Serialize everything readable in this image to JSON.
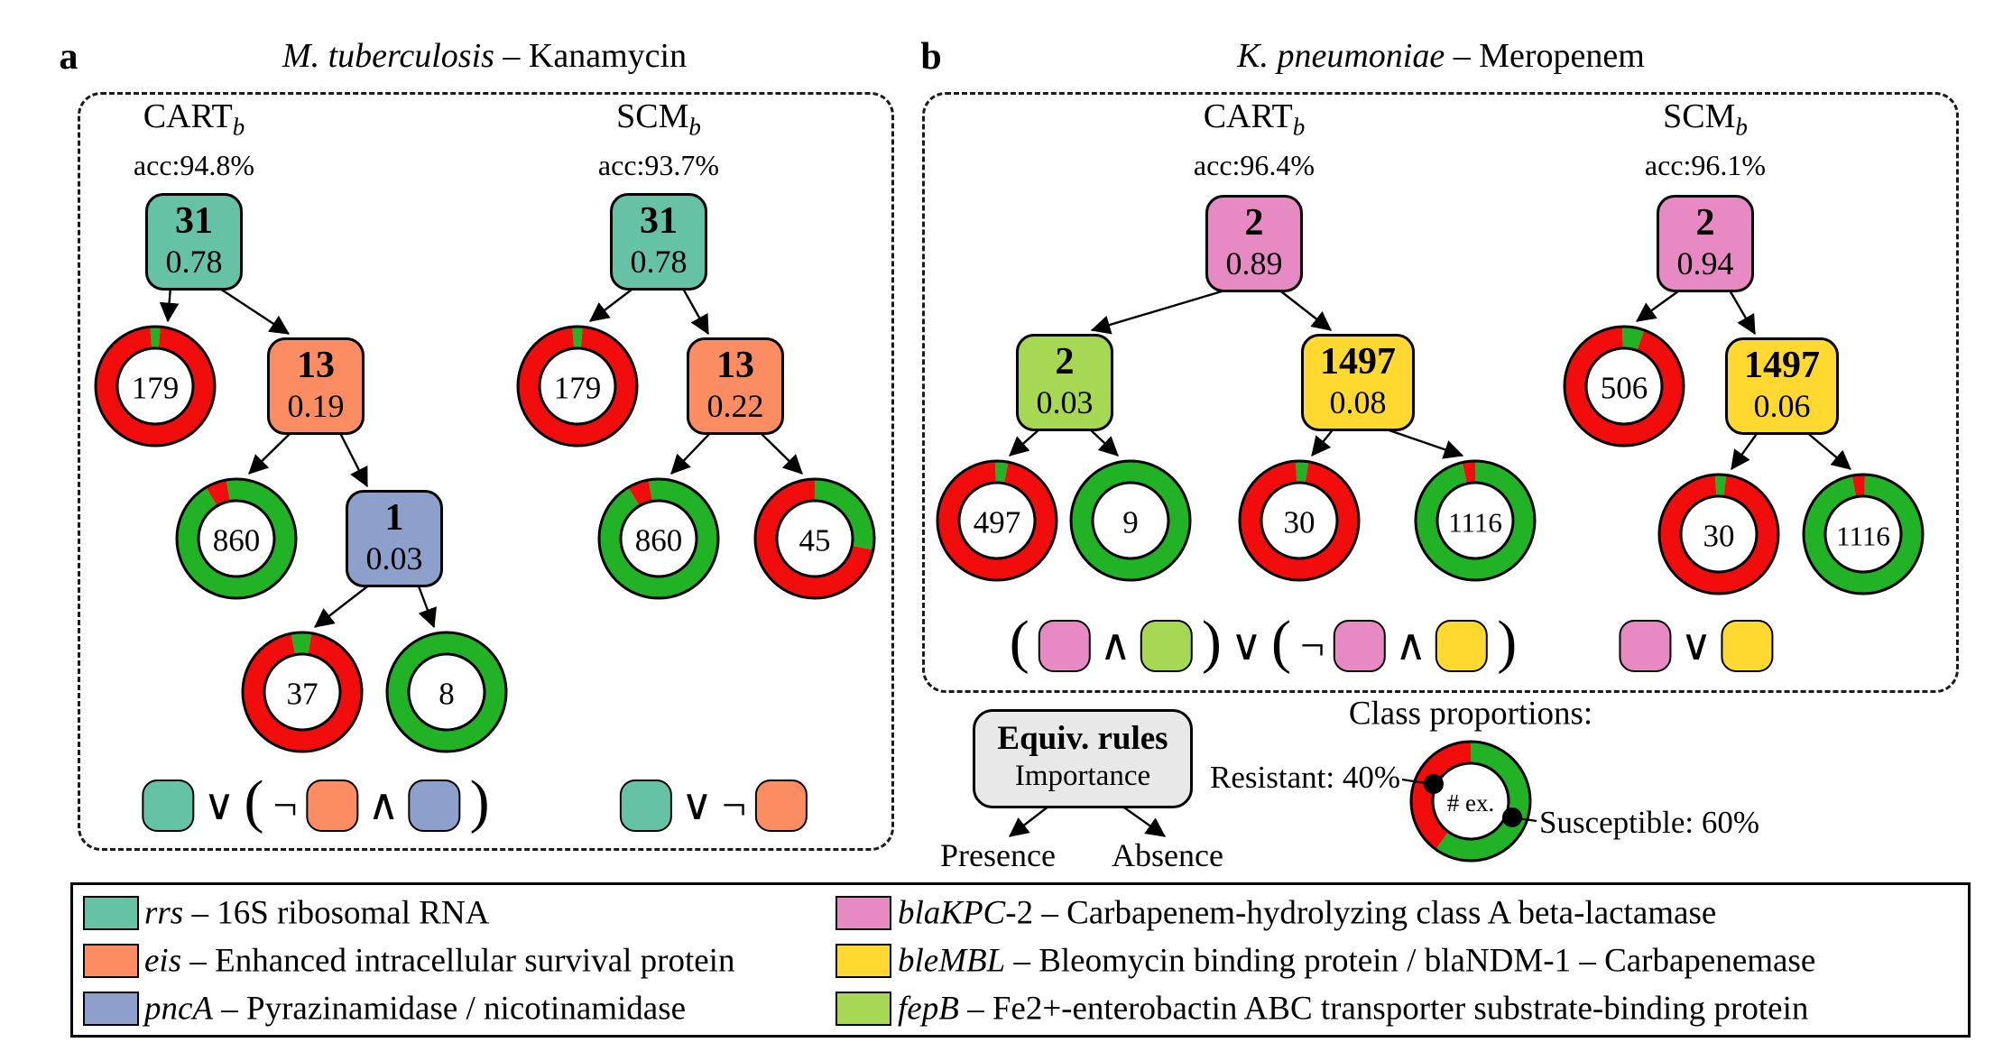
{
  "colors": {
    "teal": "#66C2A5",
    "orange": "#FC8D62",
    "blue": "#8DA0CB",
    "pink": "#E78AC3",
    "yellow": "#FFD92F",
    "green": "#A6D854",
    "resistant_red": "#F20D0D",
    "susceptible_green": "#21B226",
    "equiv_box_fill": "#E8E8E8"
  },
  "panels": {
    "a": {
      "label": "a",
      "title_italic": "M. tuberculosis",
      "title_rest": " – Kanamycin",
      "trees": [
        {
          "name": "CART",
          "sub": "b",
          "acc": "acc:94.8%",
          "nodes": [
            {
              "kind": "box",
              "color": "teal",
              "value": "31",
              "imp": "0.78"
            },
            {
              "kind": "donut",
              "value": "179",
              "rot": -0.014,
              "segs": [
                [
                  "G",
                  0.028
                ],
                [
                  "R",
                  0.972
                ]
              ]
            },
            {
              "kind": "box",
              "color": "orange",
              "value": "13",
              "imp": "0.19"
            },
            {
              "kind": "donut",
              "value": "860",
              "rot": -0.085,
              "segs": [
                [
                  "R",
                  0.058
                ],
                [
                  "G",
                  0.942
                ]
              ]
            },
            {
              "kind": "box",
              "color": "blue",
              "value": "1",
              "imp": "0.03"
            },
            {
              "kind": "donut",
              "value": "37",
              "rot": -0.03,
              "segs": [
                [
                  "G",
                  0.055
                ],
                [
                  "R",
                  0.945
                ]
              ]
            },
            {
              "kind": "donut",
              "value": "8",
              "rot": 0,
              "segs": [
                [
                  "G",
                  1
                ]
              ]
            }
          ],
          "edges": [
            [
              0,
              1
            ],
            [
              0,
              2
            ],
            [
              2,
              3
            ],
            [
              2,
              4
            ],
            [
              4,
              5
            ],
            [
              4,
              6
            ]
          ],
          "rule": [
            "chip:teal",
            "∨",
            "(",
            "¬",
            "chip:orange",
            "∧",
            "chip:blue",
            ")"
          ]
        },
        {
          "name": "SCM",
          "sub": "b",
          "acc": "acc:93.7%",
          "nodes": [
            {
              "kind": "box",
              "color": "teal",
              "value": "31",
              "imp": "0.78"
            },
            {
              "kind": "donut",
              "value": "179",
              "rot": -0.014,
              "segs": [
                [
                  "G",
                  0.028
                ],
                [
                  "R",
                  0.972
                ]
              ]
            },
            {
              "kind": "box",
              "color": "orange",
              "value": "13",
              "imp": "0.22"
            },
            {
              "kind": "donut",
              "value": "860",
              "rot": -0.085,
              "segs": [
                [
                  "R",
                  0.058
                ],
                [
                  "G",
                  0.942
                ]
              ]
            },
            {
              "kind": "donut",
              "value": "45",
              "rot": 0,
              "segs": [
                [
                  "G",
                  0.28
                ],
                [
                  "R",
                  0.72
                ]
              ]
            }
          ],
          "edges": [
            [
              0,
              1
            ],
            [
              0,
              2
            ],
            [
              2,
              3
            ],
            [
              2,
              4
            ]
          ],
          "rule": [
            "chip:teal",
            "∨",
            "¬",
            "chip:orange"
          ]
        }
      ]
    },
    "b": {
      "label": "b",
      "title_italic": "K. pneumoniae",
      "title_rest": " – Meropenem",
      "trees": [
        {
          "name": "CART",
          "sub": "b",
          "acc": "acc:96.4%",
          "nodes": [
            {
              "kind": "box",
              "color": "pink",
              "value": "2",
              "imp": "0.89"
            },
            {
              "kind": "box",
              "color": "green",
              "value": "2",
              "imp": "0.03"
            },
            {
              "kind": "box",
              "color": "yellow",
              "value": "1497",
              "imp": "0.08"
            },
            {
              "kind": "donut",
              "value": "497",
              "rot": -0.005,
              "segs": [
                [
                  "G",
                  0.035
                ],
                [
                  "R",
                  0.965
                ]
              ]
            },
            {
              "kind": "donut",
              "value": "9",
              "rot": 0,
              "segs": [
                [
                  "G",
                  1
                ]
              ]
            },
            {
              "kind": "donut",
              "value": "30",
              "rot": -0.01,
              "segs": [
                [
                  "G",
                  0.035
                ],
                [
                  "R",
                  0.965
                ]
              ]
            },
            {
              "kind": "donut",
              "value": "1116",
              "rot": -0.035,
              "segs": [
                [
                  "R",
                  0.035
                ],
                [
                  "G",
                  0.965
                ]
              ]
            }
          ],
          "edges": [
            [
              0,
              1
            ],
            [
              0,
              2
            ],
            [
              1,
              3
            ],
            [
              1,
              4
            ],
            [
              2,
              5
            ],
            [
              2,
              6
            ]
          ],
          "rule": [
            "(",
            "chip:pink",
            "∧",
            "chip:green",
            ")",
            "∨",
            "(",
            "¬",
            "chip:pink",
            "∧",
            "chip:yellow",
            ")"
          ]
        },
        {
          "name": "SCM",
          "sub": "b",
          "acc": "acc:96.1%",
          "nodes": [
            {
              "kind": "box",
              "color": "pink",
              "value": "2",
              "imp": "0.94"
            },
            {
              "kind": "donut",
              "value": "506",
              "rot": -0.005,
              "segs": [
                [
                  "G",
                  0.06
                ],
                [
                  "R",
                  0.94
                ]
              ]
            },
            {
              "kind": "box",
              "color": "yellow",
              "value": "1497",
              "imp": "0.06"
            },
            {
              "kind": "donut",
              "value": "30",
              "rot": -0.01,
              "segs": [
                [
                  "G",
                  0.03
                ],
                [
                  "R",
                  0.97
                ]
              ]
            },
            {
              "kind": "donut",
              "value": "1116",
              "rot": -0.03,
              "segs": [
                [
                  "R",
                  0.035
                ],
                [
                  "G",
                  0.965
                ]
              ]
            }
          ],
          "edges": [
            [
              0,
              1
            ],
            [
              0,
              2
            ],
            [
              2,
              3
            ],
            [
              2,
              4
            ]
          ],
          "rule": [
            "chip:pink",
            "∨",
            "chip:yellow"
          ]
        }
      ]
    }
  },
  "annotation": {
    "equiv_title": "Equiv. rules",
    "equiv_sub": "Importance",
    "presence": "Presence",
    "absence": "Absence",
    "class_title": "Class proportions:",
    "donut_center": "# ex.",
    "resistant": "Resistant: 40%",
    "susceptible": "Susceptible: 60%",
    "legend_donut": {
      "rot": 0,
      "segs": [
        [
          "G",
          0.6
        ],
        [
          "R",
          0.4
        ]
      ]
    }
  },
  "legend": {
    "items": [
      {
        "color": "teal",
        "gene": "rrs",
        "desc": " – 16S ribosomal RNA"
      },
      {
        "color": "orange",
        "gene": "eis",
        "desc": " – Enhanced intracellular survival protein"
      },
      {
        "color": "blue",
        "gene": "pncA",
        "desc": " – Pyrazinamidase / nicotinamidase"
      },
      {
        "color": "pink",
        "gene": "blaKPC",
        "desc": "-2 – Carbapenem-hydrolyzing class A beta-lactamase"
      },
      {
        "color": "yellow",
        "gene": "bleMBL",
        "desc": " – Bleomycin binding protein / blaNDM-1 – Carbapenemase"
      },
      {
        "color": "green",
        "gene": "fepB",
        "desc": " – Fe2+-enterobactin ABC transporter substrate-binding protein"
      }
    ]
  }
}
